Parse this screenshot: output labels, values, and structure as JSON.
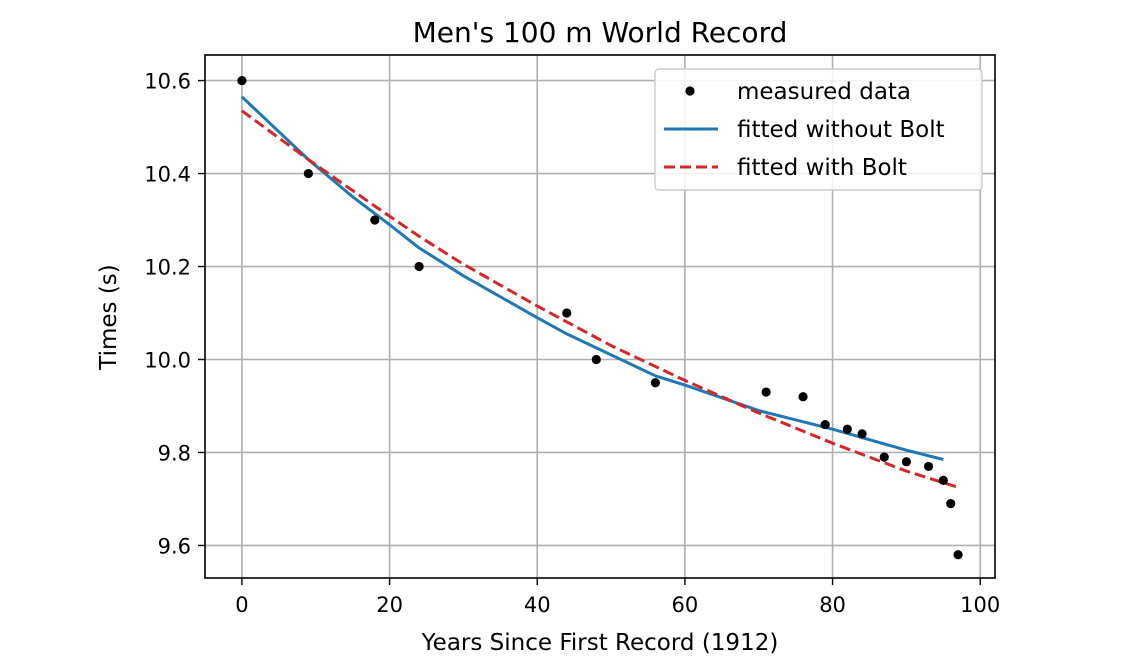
{
  "chart_data": {
    "type": "line",
    "title": "Men's 100 m World Record",
    "xlabel": "Years Since First Record (1912)",
    "ylabel": "Times (s)",
    "xlim": [
      -5,
      102
    ],
    "ylim": [
      9.53,
      10.655
    ],
    "x_ticks": [
      0,
      20,
      40,
      60,
      80,
      100
    ],
    "y_ticks": [
      9.6,
      9.8,
      10.0,
      10.2,
      10.4,
      10.6
    ],
    "y_tick_labels": [
      "9.6",
      "9.8",
      "10.0",
      "10.2",
      "10.4",
      "10.6"
    ],
    "grid": true,
    "legend_position": "upper right",
    "series": [
      {
        "name": "measured data",
        "kind": "scatter",
        "color": "#000000",
        "x": [
          0,
          9,
          18,
          24,
          44,
          48,
          56,
          71,
          76,
          79,
          82,
          84,
          87,
          90,
          93,
          95,
          96,
          97
        ],
        "y": [
          10.6,
          10.4,
          10.3,
          10.2,
          10.1,
          10.0,
          9.95,
          9.93,
          9.92,
          9.86,
          9.85,
          9.84,
          9.79,
          9.78,
          9.77,
          9.74,
          9.69,
          9.58
        ]
      },
      {
        "name": "fitted without Bolt",
        "kind": "line",
        "style": "solid",
        "color": "#1f77b4",
        "x": [
          0,
          5,
          9,
          15,
          20,
          24,
          30,
          40,
          44,
          50,
          56,
          60,
          70,
          80,
          90,
          95
        ],
        "y": [
          10.565,
          10.49,
          10.43,
          10.35,
          10.29,
          10.24,
          10.18,
          10.09,
          10.055,
          10.01,
          9.965,
          9.945,
          9.89,
          9.85,
          9.805,
          9.785
        ]
      },
      {
        "name": "fitted with Bolt",
        "kind": "line",
        "style": "dashed",
        "color": "#d62728",
        "x": [
          0,
          9,
          18,
          24,
          30,
          40,
          50,
          60,
          70,
          80,
          90,
          97
        ],
        "y": [
          10.535,
          10.43,
          10.33,
          10.265,
          10.205,
          10.115,
          10.03,
          9.955,
          9.885,
          9.82,
          9.76,
          9.725
        ]
      }
    ]
  },
  "colors": {
    "grid": "#b0b0b0",
    "axes": "#000000",
    "legend_border": "#cccccc"
  }
}
